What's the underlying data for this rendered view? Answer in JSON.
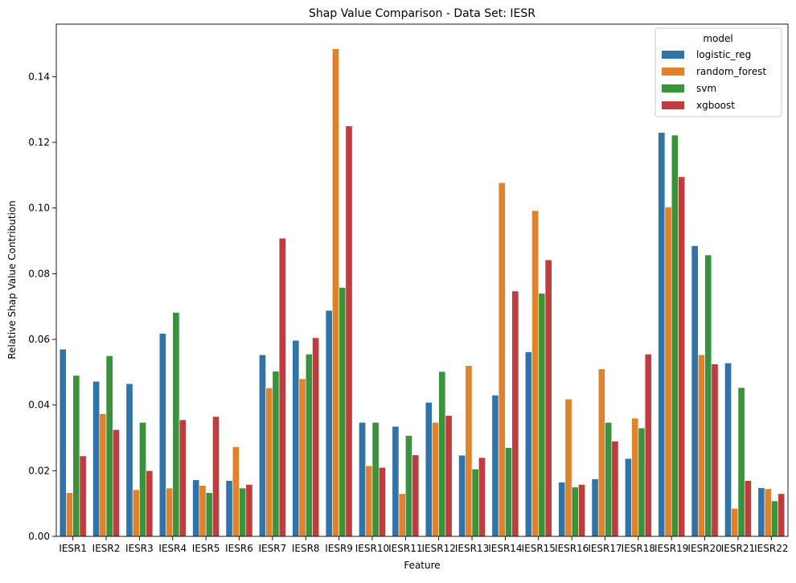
{
  "chart_data": {
    "type": "bar",
    "title": "Shap Value Comparison - Data Set: IESR",
    "xlabel": "Feature",
    "ylabel": "Relative Shap Value Contribution",
    "ylim": [
      0,
      0.156
    ],
    "yticks": [
      "0.00",
      "0.02",
      "0.04",
      "0.06",
      "0.08",
      "0.10",
      "0.12",
      "0.14"
    ],
    "grid": false,
    "legend": {
      "title": "model",
      "placement": "top-right"
    },
    "categories": [
      "IESR1",
      "IESR2",
      "IESR3",
      "IESR4",
      "IESR5",
      "IESR6",
      "IESR7",
      "IESR8",
      "IESR9",
      "IESR10",
      "IESR11",
      "IESR12",
      "IESR13",
      "IESR14",
      "IESR15",
      "IESR16",
      "IESR17",
      "IESR18",
      "IESR19",
      "IESR20",
      "IESR21",
      "IESR22"
    ],
    "series": [
      {
        "name": "logistic_reg",
        "color": "#2f73a8",
        "values": [
          0.057,
          0.0472,
          0.0465,
          0.0618,
          0.0172,
          0.017,
          0.0553,
          0.0597,
          0.0688,
          0.0347,
          0.0335,
          0.0408,
          0.0247,
          0.043,
          0.0562,
          0.0165,
          0.0175,
          0.0237,
          0.123,
          0.0885,
          0.0528,
          0.0148
        ]
      },
      {
        "name": "random_forest",
        "color": "#e0812b",
        "values": [
          0.0133,
          0.0373,
          0.0142,
          0.0147,
          0.0155,
          0.0273,
          0.0452,
          0.048,
          0.1485,
          0.0215,
          0.013,
          0.0347,
          0.052,
          0.1077,
          0.0992,
          0.0418,
          0.051,
          0.036,
          0.1003,
          0.0553,
          0.0085,
          0.0145
        ]
      },
      {
        "name": "svm",
        "color": "#3a923a",
        "values": [
          0.049,
          0.055,
          0.0347,
          0.0682,
          0.0133,
          0.0147,
          0.0503,
          0.0555,
          0.0758,
          0.0347,
          0.0307,
          0.0502,
          0.0205,
          0.027,
          0.074,
          0.015,
          0.0347,
          0.033,
          0.1222,
          0.0857,
          0.0453,
          0.0108
        ]
      },
      {
        "name": "xgboost",
        "color": "#c03d3e",
        "values": [
          0.0245,
          0.0325,
          0.02,
          0.0355,
          0.0365,
          0.0158,
          0.0908,
          0.0605,
          0.125,
          0.021,
          0.0248,
          0.0368,
          0.024,
          0.0747,
          0.0842,
          0.0158,
          0.029,
          0.0555,
          0.1095,
          0.0525,
          0.017,
          0.013
        ]
      }
    ]
  }
}
